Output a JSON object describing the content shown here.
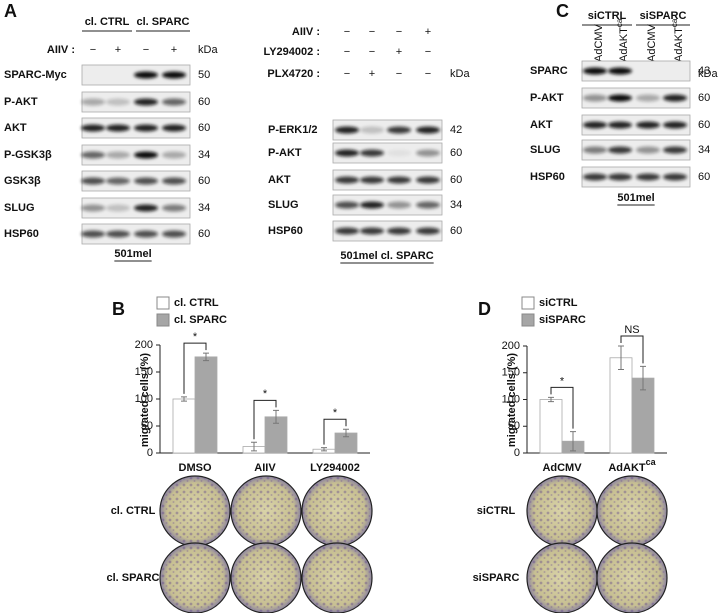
{
  "panel_labels": [
    "A",
    "B",
    "C",
    "D"
  ],
  "blots": [
    {
      "groups": [
        "cl. CTRL",
        "cl. SPARC"
      ],
      "treatments": [
        {
          "label": "AIIV :",
          "signs": [
            "−",
            "+",
            "−",
            "+"
          ]
        }
      ],
      "kda_label": "kDa",
      "rows": [
        {
          "label": "SPARC-Myc",
          "kda": 50
        },
        {
          "label": "P-AKT",
          "kda": 60
        },
        {
          "label": "AKT",
          "kda": 60
        },
        {
          "label": "P-GSK3β",
          "kda": 34
        },
        {
          "label": "GSK3β",
          "kda": 60
        },
        {
          "label": "SLUG",
          "kda": 34
        },
        {
          "label": "HSP60",
          "kda": 60
        }
      ],
      "footer": "501mel"
    },
    {
      "treatments": [
        {
          "label": "AIIV :",
          "signs": [
            "−",
            "−",
            "−",
            "+"
          ]
        },
        {
          "label": "LY294002 :",
          "signs": [
            "−",
            "−",
            "+",
            "−"
          ]
        },
        {
          "label": "PLX4720 :",
          "signs": [
            "−",
            "+",
            "−",
            "−"
          ]
        }
      ],
      "kda_label": "kDa",
      "rows": [
        {
          "label": "P-ERK1/2",
          "kda": 42
        },
        {
          "label": "P-AKT",
          "kda": 60
        },
        {
          "label": "AKT",
          "kda": 60
        },
        {
          "label": "SLUG",
          "kda": 34
        },
        {
          "label": "HSP60",
          "kda": 60
        }
      ],
      "footer": "501mel cl. SPARC"
    },
    {
      "groups": [
        "siCTRL",
        "siSPARC"
      ],
      "columns": [
        {
          "text": "AdCMV"
        },
        {
          "text": "AdAKT",
          "sup": "ca"
        },
        {
          "text": "AdCMV"
        },
        {
          "text": "AdAKT",
          "sup": "ca"
        }
      ],
      "kda_label": "kDa",
      "rows": [
        {
          "label": "SPARC",
          "kda": 43
        },
        {
          "label": "P-AKT",
          "kda": 60
        },
        {
          "label": "AKT",
          "kda": 60
        },
        {
          "label": "SLUG",
          "kda": 34
        },
        {
          "label": "HSP60",
          "kda": 60
        }
      ],
      "footer": "501mel"
    }
  ],
  "chart_data": [
    {
      "type": "bar",
      "y_label": "migrated cells (%)",
      "categories": [
        "DMSO",
        "AIIV",
        "LY294002"
      ],
      "series": [
        {
          "name": "cl. CTRL",
          "color": "#ffffff",
          "values": [
            100,
            12,
            7
          ],
          "errors": [
            4,
            8,
            3
          ]
        },
        {
          "name": "cl. SPARC",
          "color": "#a6a6a6",
          "values": [
            178,
            67,
            37
          ],
          "errors": [
            7,
            12,
            7
          ]
        }
      ],
      "annotations": [
        "*",
        "*",
        "*"
      ],
      "ylim": [
        0,
        200
      ],
      "yticks": [
        0,
        50,
        100,
        150,
        200
      ]
    },
    {
      "type": "bar",
      "y_label": "migrated cells (%)",
      "categories": [
        "AdCMV",
        "AdAKT"
      ],
      "category_sups": [
        null,
        "ca"
      ],
      "series": [
        {
          "name": "siCTRL",
          "color": "#ffffff",
          "values": [
            100,
            178
          ],
          "errors": [
            4,
            22
          ]
        },
        {
          "name": "siSPARC",
          "color": "#a6a6a6",
          "values": [
            22,
            140
          ],
          "errors": [
            18,
            22
          ]
        }
      ],
      "annotations": [
        "*",
        "NS"
      ],
      "ylim": [
        0,
        200
      ],
      "yticks": [
        0,
        50,
        100,
        150,
        200
      ]
    }
  ],
  "images": [
    {
      "rows": [
        "cl. CTRL",
        "cl. SPARC"
      ]
    },
    {
      "rows": [
        "siCTRL",
        "siSPARC"
      ]
    }
  ]
}
